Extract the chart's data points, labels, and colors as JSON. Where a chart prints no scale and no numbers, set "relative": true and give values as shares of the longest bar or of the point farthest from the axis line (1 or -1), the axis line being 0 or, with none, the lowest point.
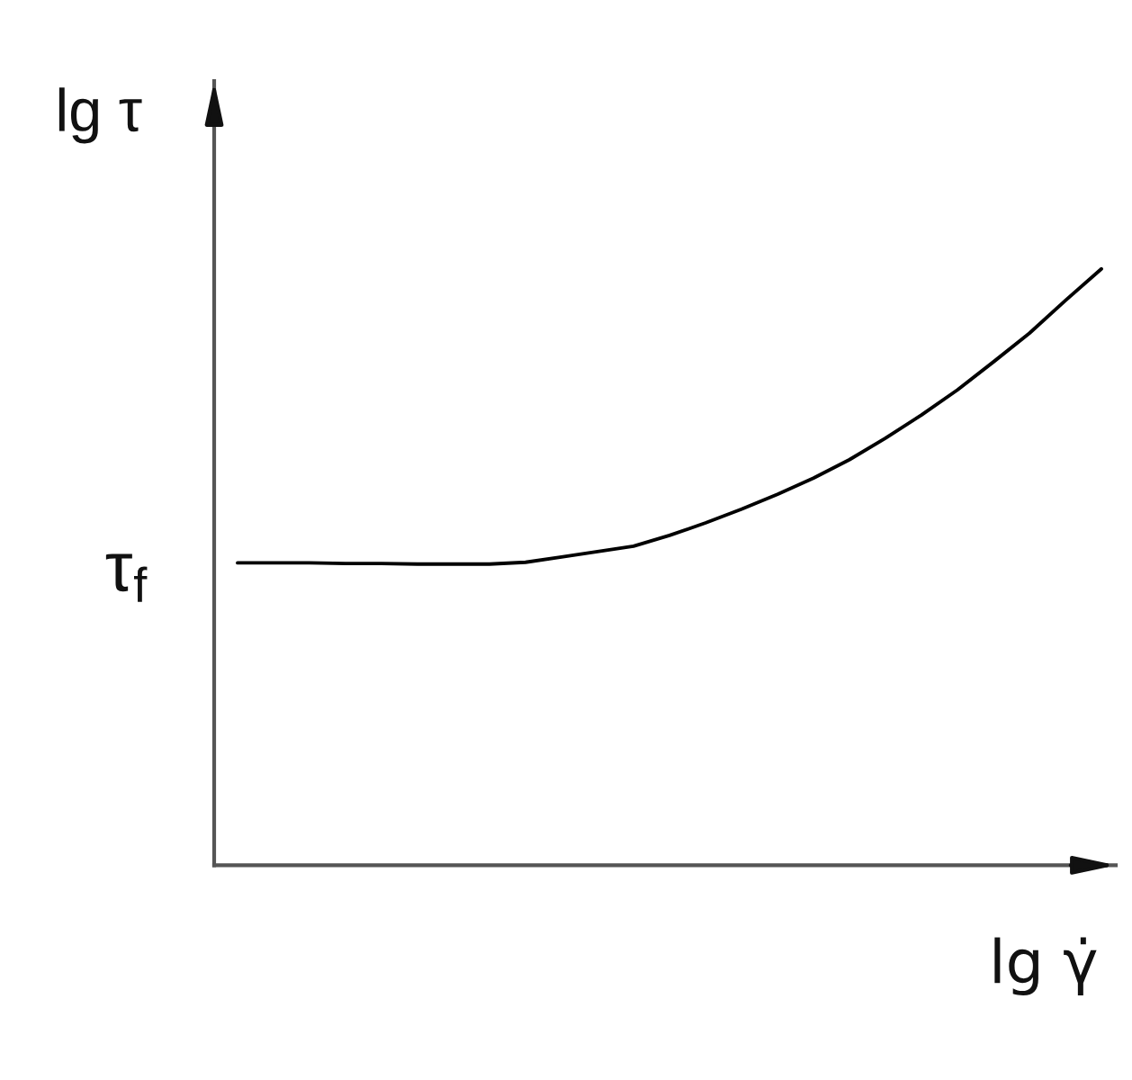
{
  "chart_data": {
    "type": "line",
    "xlabel": "lg γ̇",
    "ylabel": "lg τ",
    "relative": true,
    "tick_labels": false,
    "line_style": "solid",
    "categories": [
      null,
      null,
      null,
      null,
      null,
      null,
      null,
      null,
      null,
      null,
      null,
      null,
      null,
      null,
      null,
      null,
      null,
      null,
      null,
      null,
      null,
      null,
      null,
      null,
      null
    ],
    "series": [
      {
        "color": "#000000",
        "values": [
          0.507,
          0.507,
          0.507,
          0.506,
          0.506,
          0.505,
          0.505,
          0.505,
          0.508,
          0.517,
          0.526,
          0.535,
          0.553,
          0.574,
          0.597,
          0.622,
          0.649,
          0.68,
          0.716,
          0.755,
          0.797,
          0.844,
          0.892,
          0.947,
          1.0
        ]
      }
    ],
    "annotations": [
      "τ$_{f}$"
    ]
  }
}
